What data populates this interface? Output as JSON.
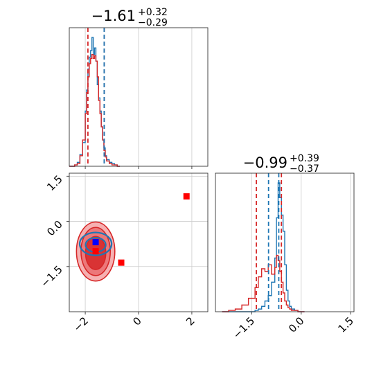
{
  "colors": {
    "red": "#d62728",
    "blue": "#1f77b4",
    "marker_blue": "#0000ff",
    "marker_red": "#ff0000",
    "grid": "#cccccc",
    "frame": "#333333"
  },
  "chart_data": {
    "type": "corner",
    "grid": true,
    "titles": {
      "param1": {
        "main": "−1.61",
        "plus": "+0.32",
        "minus": "−0.29"
      },
      "param2": {
        "main": "−0.99",
        "plus": "+0.39",
        "minus": "−0.37"
      }
    },
    "x_ticks": {
      "param1": {
        "values": [
          -2,
          0,
          2
        ],
        "labels": [
          "−2",
          "0",
          "2"
        ]
      },
      "param2": {
        "values": [
          -1.5,
          0.0,
          1.5
        ],
        "labels": [
          "−1.5",
          "0.0",
          "1.5"
        ]
      }
    },
    "y_ticks": {
      "param2": {
        "values": [
          1.5,
          0.0,
          -1.5
        ],
        "labels": [
          "1.5",
          "0.0",
          "−1.5"
        ]
      }
    },
    "xlim": {
      "param1": [
        -2.6,
        2.6
      ],
      "param2": [
        -2.6,
        1.6
      ]
    },
    "ylim": {
      "param2": [
        -3.0,
        1.6
      ]
    },
    "marginal_param1": {
      "x": [
        -2.6,
        -2.5,
        -2.4,
        -2.3,
        -2.2,
        -2.1,
        -2.0,
        -1.95,
        -1.9,
        -1.85,
        -1.8,
        -1.75,
        -1.7,
        -1.65,
        -1.6,
        -1.55,
        -1.5,
        -1.45,
        -1.4,
        -1.35,
        -1.3,
        -1.25,
        -1.2,
        -1.1,
        -1.0,
        -0.9,
        -0.8
      ],
      "series": [
        {
          "color": "blue",
          "values": [
            0,
            0,
            0.01,
            0.03,
            0.09,
            0.18,
            0.42,
            0.58,
            0.74,
            0.83,
            0.88,
            0.98,
            0.85,
            0.9,
            0.8,
            0.62,
            0.52,
            0.42,
            0.3,
            0.2,
            0.14,
            0.08,
            0.05,
            0.03,
            0.02,
            0.01,
            0
          ]
        },
        {
          "color": "red",
          "values": [
            0,
            0,
            0.01,
            0.02,
            0.08,
            0.2,
            0.4,
            0.56,
            0.68,
            0.78,
            0.82,
            0.85,
            0.82,
            0.84,
            0.8,
            0.68,
            0.5,
            0.4,
            0.3,
            0.2,
            0.12,
            0.07,
            0.04,
            0.02,
            0.01,
            0.01,
            0
          ]
        }
      ],
      "quantiles": {
        "red": [
          -1.9,
          -1.29
        ],
        "blue": [
          -1.29
        ]
      }
    },
    "marginal_param2": {
      "x": [
        -2.4,
        -2.2,
        -2.0,
        -1.8,
        -1.6,
        -1.4,
        -1.3,
        -1.2,
        -1.1,
        -1.0,
        -0.9,
        -0.8,
        -0.75,
        -0.7,
        -0.65,
        -0.6,
        -0.55,
        -0.5,
        -0.45,
        -0.4,
        -0.35,
        -0.3,
        -0.2,
        -0.1,
        0.0
      ],
      "series": [
        {
          "color": "blue",
          "values": [
            0,
            0,
            0,
            0,
            0,
            0.01,
            0.02,
            0.04,
            0.08,
            0.12,
            0.22,
            0.4,
            0.7,
            0.96,
            0.85,
            0.72,
            0.6,
            0.35,
            0.16,
            0.08,
            0.04,
            0.02,
            0.01,
            0,
            0
          ]
        },
        {
          "color": "red",
          "values": [
            0,
            0.01,
            0.02,
            0.05,
            0.1,
            0.18,
            0.26,
            0.32,
            0.3,
            0.35,
            0.28,
            0.33,
            0.42,
            0.38,
            0.3,
            0.22,
            0.14,
            0.08,
            0.05,
            0.03,
            0.02,
            0.01,
            0.01,
            0,
            0
          ]
        }
      ],
      "quantiles": {
        "red": [
          -1.36,
          -0.6
        ],
        "blue": [
          -0.99,
          -0.68
        ]
      }
    },
    "joint": {
      "contours_red": [
        {
          "cx": -1.61,
          "cy": -1.0,
          "rx": 0.72,
          "ry": 0.98,
          "level": 1
        },
        {
          "cx": -1.61,
          "cy": -1.0,
          "rx": 0.55,
          "ry": 0.8,
          "level": 2
        },
        {
          "cx": -1.61,
          "cy": -1.05,
          "rx": 0.38,
          "ry": 0.55,
          "level": 3
        }
      ],
      "contours_blue": [
        {
          "cx": -1.61,
          "cy": -0.75,
          "rx": 0.6,
          "ry": 0.38
        },
        {
          "cx": -1.61,
          "cy": -0.78,
          "rx": 0.38,
          "ry": 0.24
        }
      ],
      "markers": [
        {
          "color": "marker_blue",
          "x": -1.61,
          "y": -0.69
        },
        {
          "color": "marker_red",
          "x": -1.61,
          "y": -0.99
        },
        {
          "color": "marker_red",
          "x": -0.65,
          "y": -1.37
        },
        {
          "color": "marker_red",
          "x": 1.8,
          "y": 0.83
        }
      ]
    }
  }
}
